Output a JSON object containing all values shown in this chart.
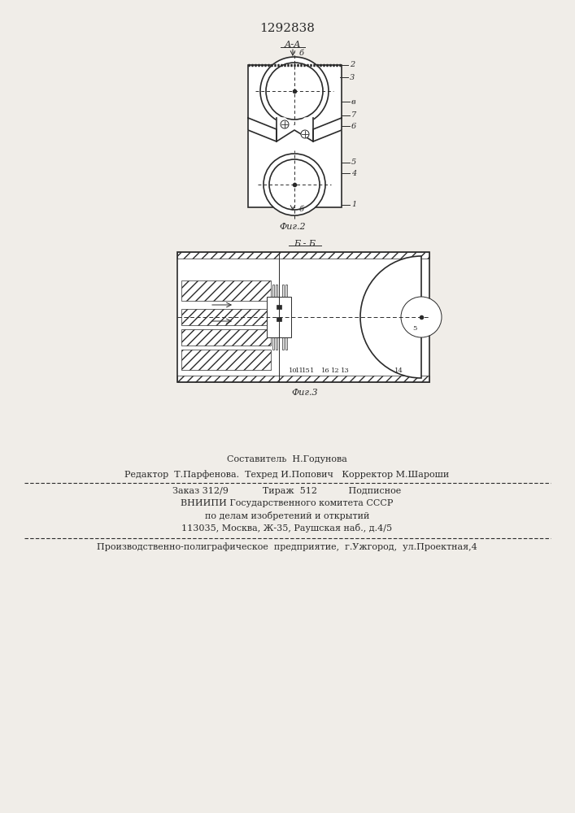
{
  "patent_number": "1292838",
  "bg_color": "#f0ede8",
  "fig2_label": "А-А",
  "fig2_caption": "Фиг.2",
  "fig3_label": "Б - Б",
  "fig3_caption": "Фиг.3",
  "footer_line1": "Составитель  Н.Годунова",
  "footer_line2": "Редактор  Т.Парфенова.  Техред И.Попович   Корректор М.Шароши",
  "footer_line3": "Заказ 312/9            Тираж  512           Подписное",
  "footer_line4": "ВНИИПИ Государственного комитета СССР",
  "footer_line5": "по делам изобретений и открытий",
  "footer_line6": "113035, Москва, Ж-35, Раушская наб., д.4/5",
  "footer_line7": "Производственно-полиграфическое  предприятие,  г.Ужгород,  ул.Проектная,4",
  "draw_color": "#2a2a2a",
  "hatch_color": "#555555"
}
